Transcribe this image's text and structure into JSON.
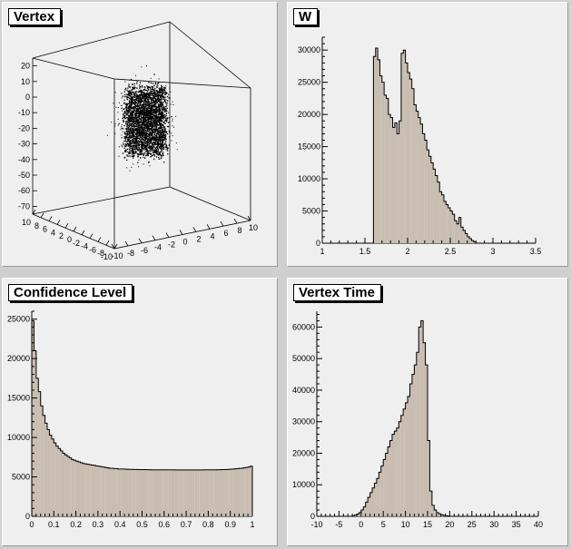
{
  "colors": {
    "fill": "#c8bcb0",
    "outline": "#000000",
    "pad": "#efefef"
  },
  "chart_data": [
    {
      "id": "vertex",
      "type": "scatter",
      "title": "Vertex",
      "z_ticks": [
        "20",
        "10",
        "0",
        "-10",
        "-20",
        "-30",
        "-40",
        "-50",
        "-60",
        "-70"
      ],
      "y_ticks": [
        "10",
        "8",
        "6",
        "4",
        "2",
        "0",
        "-2",
        "-4",
        "-6",
        "-8",
        "-10"
      ],
      "x_ticks": [
        "-10",
        "-8",
        "-6",
        "-4",
        "-2",
        "0",
        "2",
        "4",
        "6",
        "8",
        "10"
      ],
      "zlim": [
        -75,
        25
      ],
      "note": "dense cluster of points"
    },
    {
      "id": "w",
      "type": "bar",
      "title": "W",
      "xlim": [
        1,
        3.5
      ],
      "ylim": [
        0,
        32000
      ],
      "x_ticks": [
        "1",
        "1.5",
        "2",
        "2.5",
        "3",
        "3.5"
      ],
      "y_ticks": [
        "0",
        "5000",
        "10000",
        "15000",
        "20000",
        "25000",
        "30000"
      ],
      "bin_width": 0.025,
      "x_start": 1.6,
      "values": [
        29000,
        30300,
        28500,
        26000,
        25000,
        23000,
        22500,
        20000,
        19500,
        18000,
        18700,
        17000,
        19000,
        29500,
        30000,
        28000,
        26500,
        25500,
        24000,
        21500,
        20500,
        19500,
        18500,
        17000,
        16000,
        14500,
        13500,
        12500,
        11500,
        10500,
        9500,
        8000,
        7500,
        6500,
        6000,
        5500,
        5000,
        4500,
        3500,
        3000,
        4000,
        2500,
        2000,
        1500,
        1000,
        700,
        400,
        200
      ]
    },
    {
      "id": "confidence",
      "type": "bar",
      "title": "Confidence Level",
      "xlim": [
        0,
        1
      ],
      "ylim": [
        0,
        26000
      ],
      "x_ticks": [
        "0",
        "0.1",
        "0.2",
        "0.3",
        "0.4",
        "0.5",
        "0.6",
        "0.7",
        "0.8",
        "0.9",
        "1"
      ],
      "y_ticks": [
        "0",
        "5000",
        "10000",
        "15000",
        "20000",
        "25000"
      ],
      "bin_width": 0.01,
      "x_start": 0,
      "values": [
        24800,
        21000,
        17500,
        15800,
        14000,
        12800,
        11800,
        11000,
        10300,
        9800,
        9300,
        8900,
        8600,
        8300,
        8000,
        7800,
        7600,
        7400,
        7200,
        7100,
        7000,
        6900,
        6800,
        6700,
        6650,
        6600,
        6550,
        6500,
        6450,
        6400,
        6350,
        6300,
        6250,
        6200,
        6150,
        6100,
        6100,
        6050,
        6050,
        6000,
        6000,
        6000,
        5980,
        5970,
        5960,
        5950,
        5940,
        5940,
        5930,
        5930,
        5920,
        5920,
        5910,
        5910,
        5900,
        5900,
        5900,
        5900,
        5900,
        5900,
        5890,
        5890,
        5890,
        5890,
        5890,
        5880,
        5880,
        5880,
        5880,
        5880,
        5880,
        5880,
        5880,
        5880,
        5880,
        5880,
        5880,
        5880,
        5890,
        5890,
        5890,
        5890,
        5900,
        5900,
        5910,
        5910,
        5920,
        5930,
        5940,
        5960,
        5980,
        6000,
        6020,
        6050,
        6080,
        6100,
        6150,
        6200,
        6250,
        6350
      ]
    },
    {
      "id": "vertex-time",
      "type": "bar",
      "title": "Vertex Time",
      "xlim": [
        -10,
        40
      ],
      "ylim": [
        0,
        65000
      ],
      "x_ticks": [
        "-10",
        "-5",
        "0",
        "5",
        "10",
        "15",
        "20",
        "25",
        "30",
        "35",
        "40"
      ],
      "y_ticks": [
        "0",
        "10000",
        "20000",
        "30000",
        "40000",
        "50000",
        "60000"
      ],
      "bin_width": 0.5,
      "x_start": -2,
      "values": [
        200,
        400,
        700,
        1200,
        2000,
        3000,
        4500,
        6000,
        7500,
        9000,
        10500,
        12000,
        14000,
        16000,
        18000,
        20000,
        22000,
        24000,
        26000,
        27000,
        28000,
        30000,
        32000,
        34000,
        36000,
        38000,
        42000,
        45000,
        48000,
        52000,
        60000,
        62000,
        55000,
        48000,
        24000,
        8000,
        3500,
        2000,
        1200,
        800,
        500,
        300,
        200,
        100
      ]
    }
  ]
}
